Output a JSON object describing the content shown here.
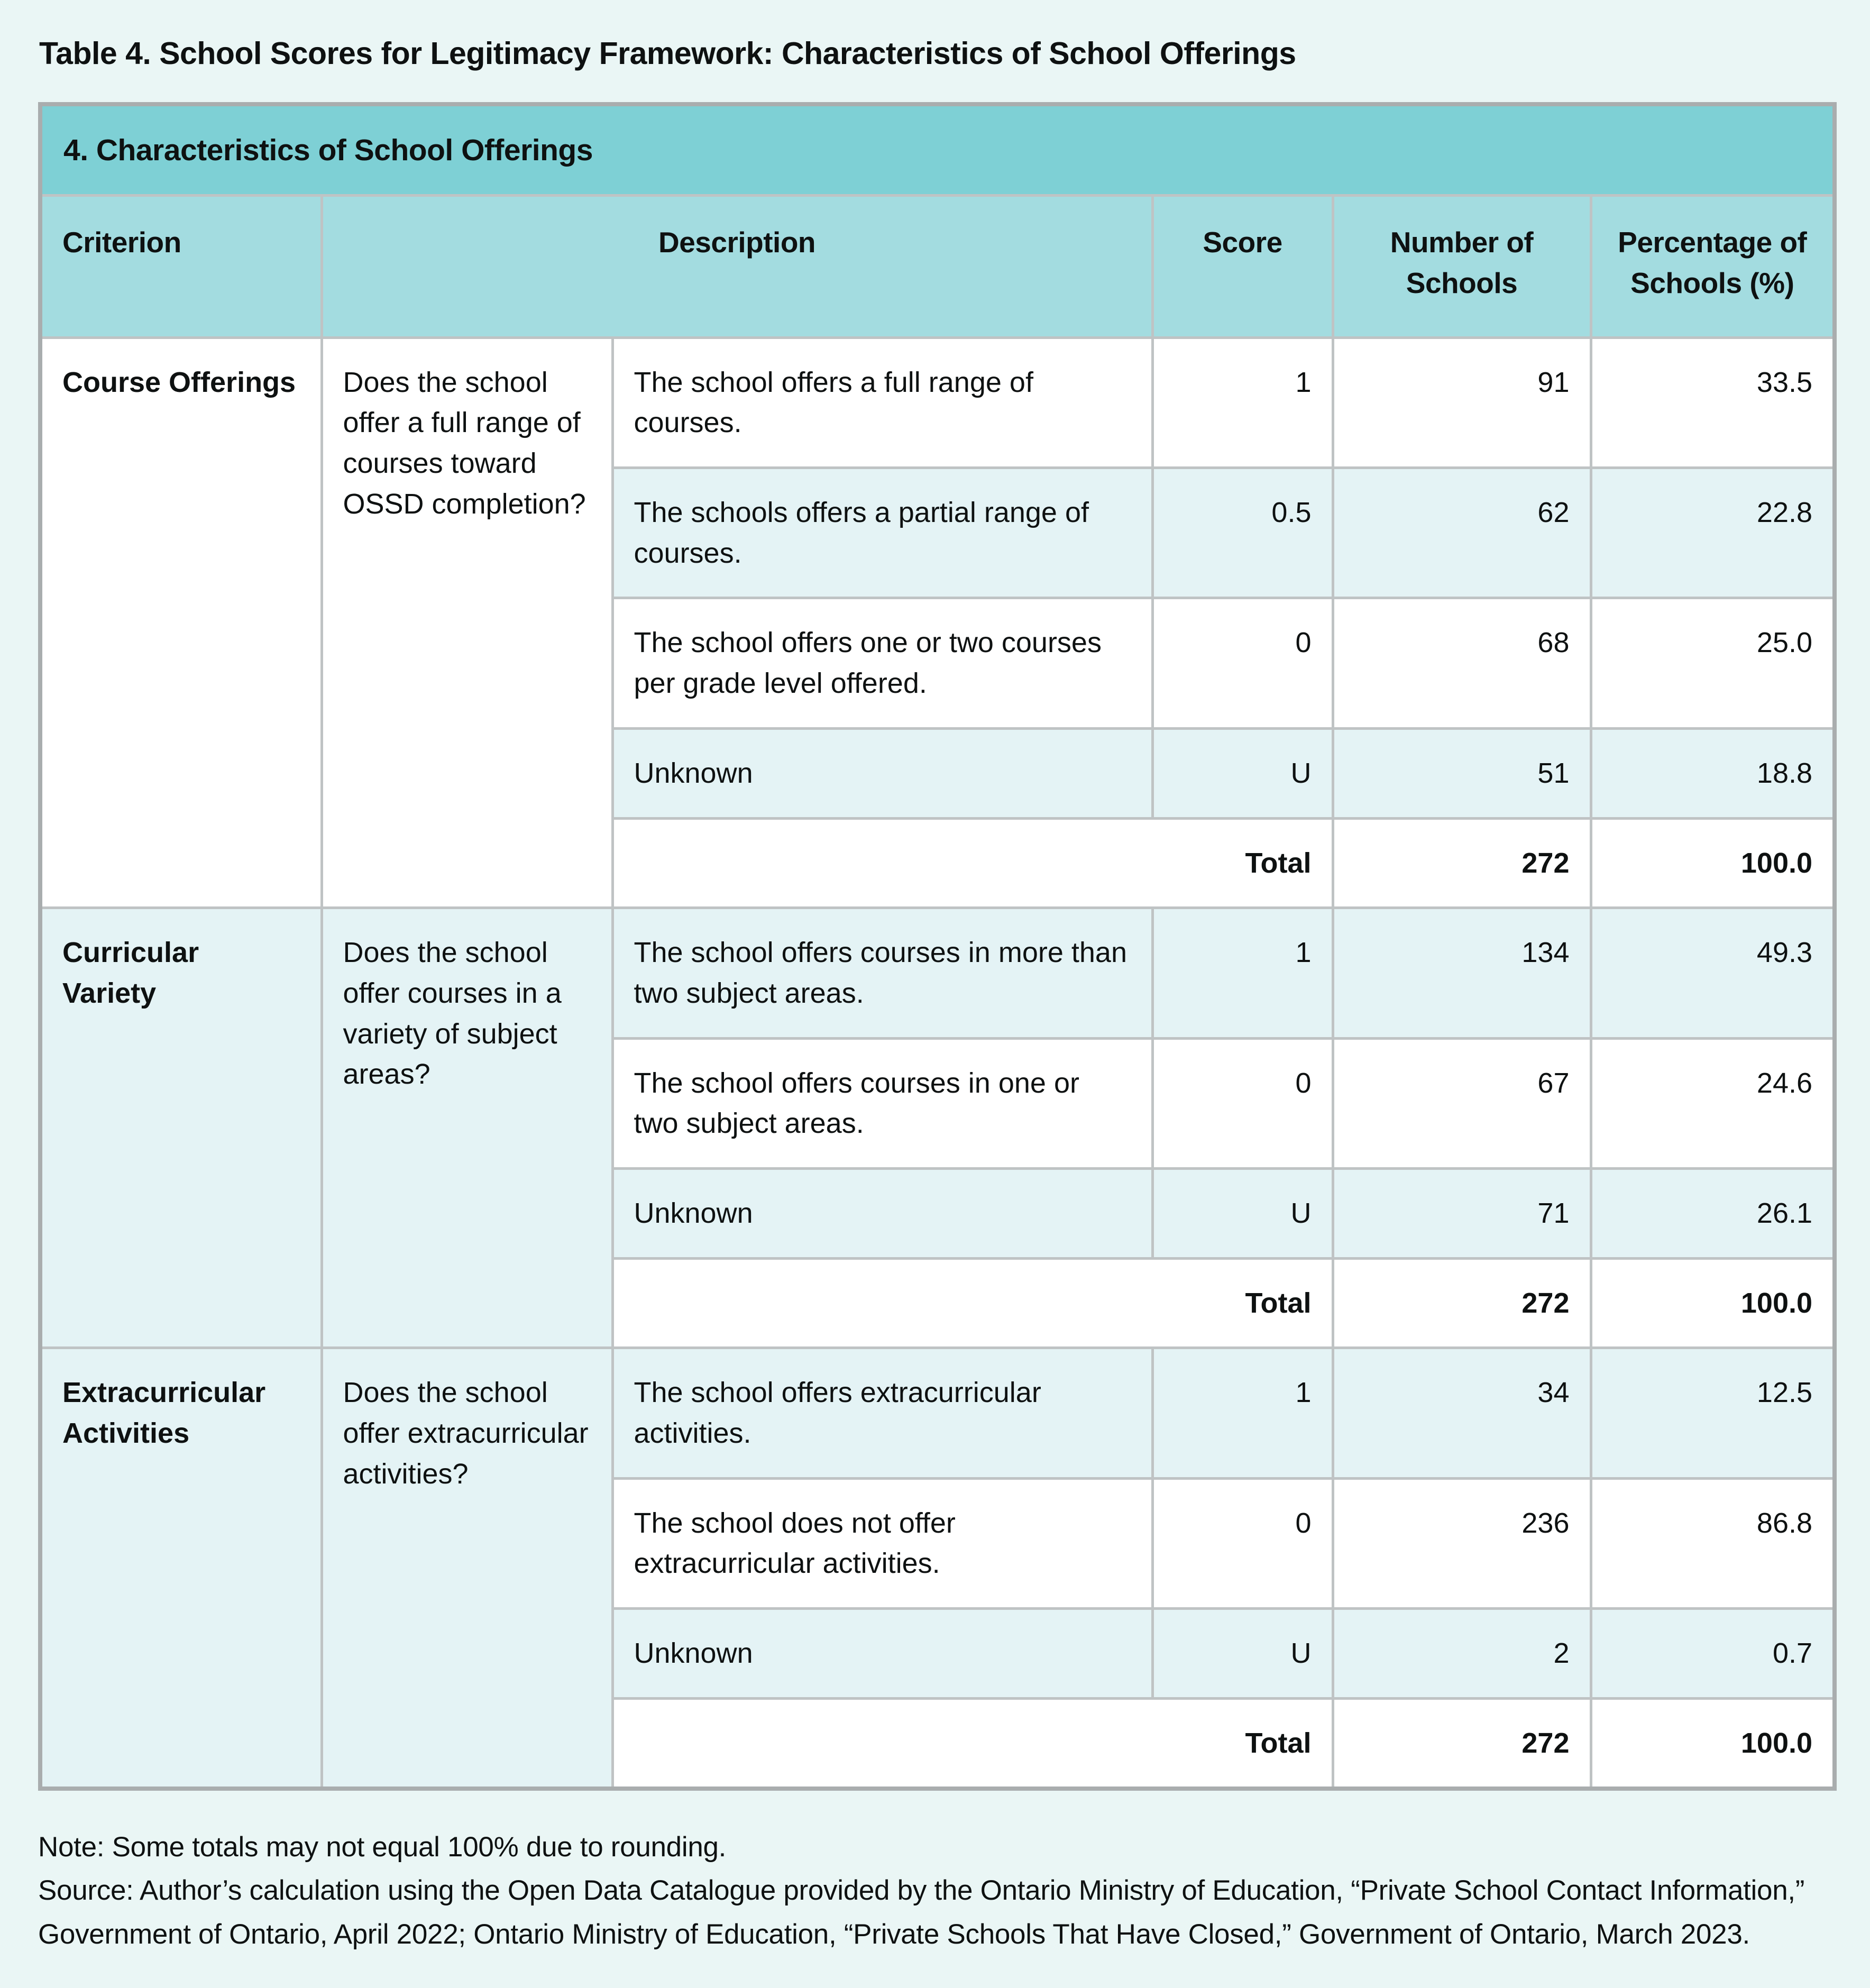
{
  "page": {
    "title": "Table 4. School Scores for Legitimacy Framework: Characteristics of School Offerings",
    "note": "Note: Some totals may not equal 100% due to rounding.",
    "source": "Source: Author’s calculation using the Open Data Catalogue provided by the Ontario Ministry of Education, “Private School Contact Information,” Government of Ontario, April 2022; Ontario Ministry of Education, “Private Schools That Have Closed,” Government of Ontario, March 2023."
  },
  "table": {
    "section_title": "4. Characteristics of School Offerings",
    "columns": {
      "criterion": "Criterion",
      "description": "Description",
      "score": "Score",
      "number": "Number of Schools",
      "percentage": "Percentage of Schools (%)"
    },
    "total_label": "Total",
    "groups": [
      {
        "criterion": "Course Offerings",
        "question": "Does the school offer a full range of courses toward OSSD completion?",
        "rows": [
          {
            "description": "The school offers a full range of courses.",
            "score": "1",
            "number": "91",
            "percentage": "33.5"
          },
          {
            "description": "The schools offers a partial range of courses.",
            "score": "0.5",
            "number": "62",
            "percentage": "22.8"
          },
          {
            "description": "The school offers one or two courses per grade level offered.",
            "score": "0",
            "number": "68",
            "percentage": "25.0"
          },
          {
            "description": "Unknown",
            "score": "U",
            "number": "51",
            "percentage": "18.8"
          }
        ],
        "total": {
          "number": "272",
          "percentage": "100.0"
        }
      },
      {
        "criterion": "Curricular Variety",
        "question": "Does the school offer courses in a variety of subject areas?",
        "rows": [
          {
            "description": "The school offers courses in more than two subject areas.",
            "score": "1",
            "number": "134",
            "percentage": "49.3"
          },
          {
            "description": "The school offers courses in one or two subject areas.",
            "score": "0",
            "number": "67",
            "percentage": "24.6"
          },
          {
            "description": "Unknown",
            "score": "U",
            "number": "71",
            "percentage": "26.1"
          }
        ],
        "total": {
          "number": "272",
          "percentage": "100.0"
        }
      },
      {
        "criterion": "Extracurricular Activities",
        "question": "Does the school offer extracurricular activities?",
        "rows": [
          {
            "description": "The school offers extracurricular activities.",
            "score": "1",
            "number": "34",
            "percentage": "12.5"
          },
          {
            "description": "The school does not offer extracurricular activities.",
            "score": "0",
            "number": "236",
            "percentage": "86.8"
          },
          {
            "description": "Unknown",
            "score": "U",
            "number": "2",
            "percentage": "0.7"
          }
        ],
        "total": {
          "number": "272",
          "percentage": "100.0"
        }
      }
    ]
  },
  "colors": {
    "page_bg": "#eaf6f5",
    "section_header_bg": "#7ed0d5",
    "column_header_bg": "#a3dce0",
    "alt_row_bg": "#e4f3f5",
    "border": "#bfc3c4",
    "text": "#0e1111"
  }
}
